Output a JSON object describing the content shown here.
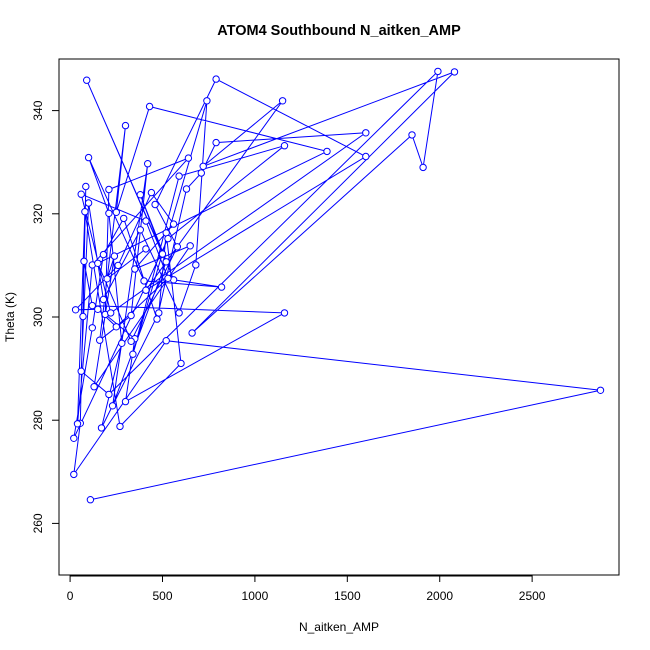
{
  "chart_data": {
    "type": "line",
    "title": "ATOM4 Southbound N_aitken_AMP",
    "xlabel": "N_aitken_AMP",
    "ylabel": "Theta (K)",
    "xlim": [
      -60,
      2970
    ],
    "ylim": [
      250,
      350
    ],
    "x_ticks": [
      0,
      500,
      1000,
      1500,
      2000,
      2500
    ],
    "y_ticks": [
      260,
      280,
      300,
      320,
      340
    ],
    "grid": false,
    "legend": "none",
    "series": [
      {
        "color": "#0000ff",
        "style": "line-with-open-circles",
        "points": [
          [
            110,
            264.6
          ],
          [
            2870,
            285.8
          ],
          [
            520,
            295.4
          ],
          [
            20,
            269.5
          ],
          [
            55,
            279.4
          ],
          [
            85,
            325.3
          ],
          [
            70,
            300.1
          ],
          [
            75,
            310.8
          ],
          [
            120,
            302.2
          ],
          [
            1160,
            300.8
          ],
          [
            300,
            283.6
          ],
          [
            350,
            295.8
          ],
          [
            190,
            300.5
          ],
          [
            210,
            324.7
          ],
          [
            640,
            330.8
          ],
          [
            120,
            310.1
          ],
          [
            40,
            279.3
          ],
          [
            80,
            320.4
          ],
          [
            270,
            278.8
          ],
          [
            600,
            291.0
          ],
          [
            520,
            316.3
          ],
          [
            480,
            300.8
          ],
          [
            170,
            278.5
          ],
          [
            280,
            294.9
          ],
          [
            210,
            320.1
          ],
          [
            100,
            330.9
          ],
          [
            400,
            307.0
          ],
          [
            820,
            305.8
          ],
          [
            560,
            307.2
          ],
          [
            380,
            323.7
          ],
          [
            500,
            312.2
          ],
          [
            90,
            345.9
          ],
          [
            520,
            310.7
          ],
          [
            230,
            282.8
          ],
          [
            420,
            329.7
          ],
          [
            330,
            300.3
          ],
          [
            160,
            295.5
          ],
          [
            300,
            337.1
          ],
          [
            250,
            320.3
          ],
          [
            430,
            340.8
          ],
          [
            1390,
            332.1
          ],
          [
            150,
            310.4
          ],
          [
            330,
            295.3
          ],
          [
            580,
            313.6
          ],
          [
            460,
            321.8
          ],
          [
            790,
            346.1
          ],
          [
            1600,
            331.1
          ],
          [
            410,
            305.2
          ],
          [
            1150,
            341.9
          ],
          [
            720,
            329.2
          ],
          [
            2080,
            347.5
          ],
          [
            660,
            296.9
          ],
          [
            1850,
            335.3
          ],
          [
            1910,
            329.0
          ],
          [
            1990,
            347.6
          ],
          [
            210,
            285.0
          ],
          [
            60,
            289.5
          ],
          [
            100,
            322.1
          ],
          [
            180,
            303.4
          ],
          [
            380,
            316.9
          ],
          [
            590,
            300.8
          ],
          [
            680,
            310.1
          ],
          [
            740,
            341.9
          ],
          [
            340,
            292.8
          ],
          [
            590,
            327.3
          ],
          [
            1160,
            333.2
          ],
          [
            530,
            315.2
          ],
          [
            20,
            276.5
          ],
          [
            120,
            297.9
          ],
          [
            180,
            312.1
          ],
          [
            290,
            319.1
          ],
          [
            470,
            299.6
          ],
          [
            630,
            324.8
          ],
          [
            710,
            327.9
          ],
          [
            790,
            333.8
          ],
          [
            1600,
            335.7
          ],
          [
            220,
            300.8
          ],
          [
            60,
            323.8
          ],
          [
            410,
            318.6
          ],
          [
            530,
            307.5
          ],
          [
            250,
            298.1
          ],
          [
            150,
            301.5
          ],
          [
            30,
            301.4
          ],
          [
            260,
            310.0
          ],
          [
            440,
            324.1
          ],
          [
            560,
            318.0
          ],
          [
            350,
            309.3
          ],
          [
            650,
            313.8
          ],
          [
            130,
            286.5
          ],
          [
            240,
            311.8
          ],
          [
            200,
            307.4
          ],
          [
            410,
            313.2
          ]
        ]
      }
    ]
  }
}
